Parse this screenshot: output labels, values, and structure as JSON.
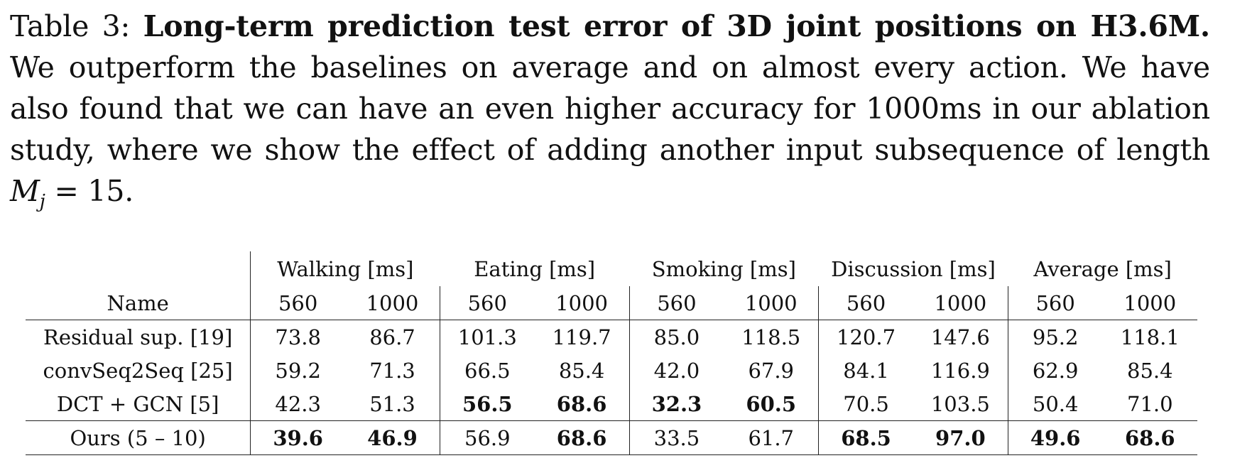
{
  "caption": {
    "label": "Table 3:",
    "bold_text": "Long-term prediction test error of 3D joint positions on H3.6M.",
    "body_text": "We outperform the baselines on average and on almost every action. We have also found that we can have an even higher accuracy for 1000ms in our ablation study, where we show the effect of adding another input subsequence of length",
    "math_var": "M",
    "math_sub": "j",
    "math_rest": "= 15."
  },
  "table": {
    "name_header": "Name",
    "groups": [
      "Walking [ms]",
      "Eating [ms]",
      "Smoking [ms]",
      "Discussion [ms]",
      "Average [ms]"
    ],
    "subheaders": [
      "560",
      "1000",
      "560",
      "1000",
      "560",
      "1000",
      "560",
      "1000",
      "560",
      "1000"
    ],
    "rows": [
      {
        "name": "Residual sup. [19]",
        "values": [
          "73.8",
          "86.7",
          "101.3",
          "119.7",
          "85.0",
          "118.5",
          "120.7",
          "147.6",
          "95.2",
          "118.1"
        ],
        "bold": [
          false,
          false,
          false,
          false,
          false,
          false,
          false,
          false,
          false,
          false
        ]
      },
      {
        "name": "convSeq2Seq [25]",
        "values": [
          "59.2",
          "71.3",
          "66.5",
          "85.4",
          "42.0",
          "67.9",
          "84.1",
          "116.9",
          "62.9",
          "85.4"
        ],
        "bold": [
          false,
          false,
          false,
          false,
          false,
          false,
          false,
          false,
          false,
          false
        ]
      },
      {
        "name": "DCT + GCN [5]",
        "values": [
          "42.3",
          "51.3",
          "56.5",
          "68.6",
          "32.3",
          "60.5",
          "70.5",
          "103.5",
          "50.4",
          "71.0"
        ],
        "bold": [
          false,
          false,
          true,
          true,
          true,
          true,
          false,
          false,
          false,
          false
        ]
      },
      {
        "name": "Ours (5 – 10)",
        "values": [
          "39.6",
          "46.9",
          "56.9",
          "68.6",
          "33.5",
          "61.7",
          "68.5",
          "97.0",
          "49.6",
          "68.6"
        ],
        "bold": [
          true,
          true,
          false,
          true,
          false,
          false,
          true,
          true,
          true,
          true
        ]
      }
    ]
  }
}
